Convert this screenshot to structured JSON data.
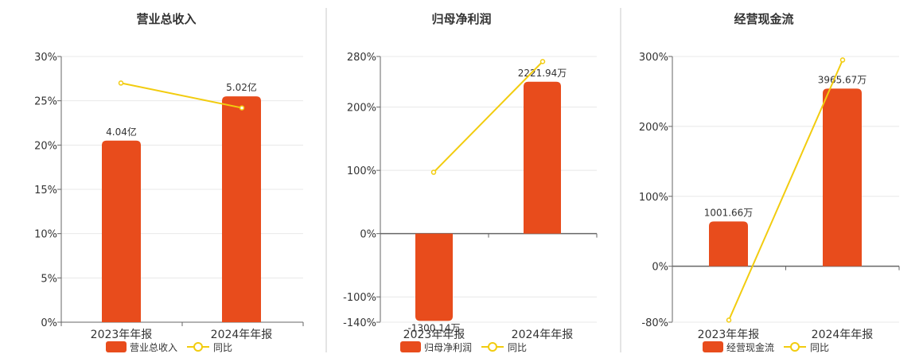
{
  "colors": {
    "bar": "#E84C1C",
    "line": "#F2CC0F",
    "grid": "#E8E8E8",
    "axis": "#666666",
    "divider": "#C8C8C8",
    "text": "#333333"
  },
  "chart_data": [
    {
      "type": "bar",
      "title": "营业总收入",
      "categories": [
        "2023年年报",
        "2024年年报"
      ],
      "series": [
        {
          "name": "营业总收入",
          "type": "bar",
          "value_labels": [
            "4.04亿",
            "5.02亿"
          ],
          "values": [
            20.5,
            25.5
          ]
        },
        {
          "name": "同比",
          "type": "line",
          "values": [
            27.0,
            24.2
          ]
        }
      ],
      "y_ticks": [
        "30%",
        "25%",
        "20%",
        "15%",
        "10%",
        "5%",
        "0%"
      ],
      "ylim": [
        0,
        30
      ],
      "grid": true,
      "legend_position": "bottom"
    },
    {
      "type": "bar",
      "title": "归母净利润",
      "categories": [
        "2023年年报",
        "2024年年报"
      ],
      "series": [
        {
          "name": "归母净利润",
          "type": "bar",
          "value_labels": [
            "-1300.14万",
            "2221.94万"
          ],
          "values": [
            -138,
            240
          ]
        },
        {
          "name": "同比",
          "type": "line",
          "values": [
            97,
            272
          ]
        }
      ],
      "y_ticks": [
        "280%",
        "200%",
        "100%",
        "0%",
        "-100%",
        "-140%"
      ],
      "ylim": [
        -140,
        280
      ],
      "grid": true,
      "legend_position": "bottom"
    },
    {
      "type": "bar",
      "title": "经营现金流",
      "categories": [
        "2023年年报",
        "2024年年报"
      ],
      "series": [
        {
          "name": "经营现金流",
          "type": "bar",
          "value_labels": [
            "1001.66万",
            "3965.67万"
          ],
          "values": [
            64,
            254
          ]
        },
        {
          "name": "同比",
          "type": "line",
          "values": [
            -77,
            295
          ]
        }
      ],
      "y_ticks": [
        "300%",
        "200%",
        "100%",
        "0%",
        "-80%"
      ],
      "ylim": [
        -80,
        300
      ],
      "grid": true,
      "legend_position": "bottom"
    }
  ]
}
